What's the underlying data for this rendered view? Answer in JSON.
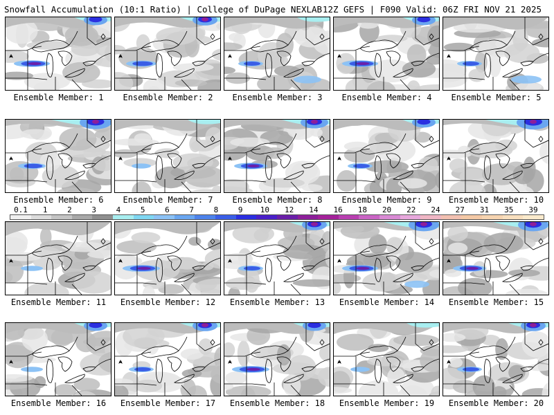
{
  "header": {
    "title_left": "Snowfall Accumulation (10:1 Ratio) | College of DuPage NEXLAB",
    "title_right": "12Z GEFS | F090 Valid: 06Z FRI NOV 21 2025"
  },
  "panels": [
    {
      "label": "Ensemble Member: 1",
      "north": 0.55,
      "lake_band": 0.9,
      "east": 0.2
    },
    {
      "label": "Ensemble Member: 2",
      "north": 0.6,
      "lake_band": 0.7,
      "east": 0.2
    },
    {
      "label": "Ensemble Member: 3",
      "north": 0.5,
      "lake_band": 0.5,
      "east": 0.5
    },
    {
      "label": "Ensemble Member: 4",
      "north": 0.55,
      "lake_band": 0.9,
      "east": 0.3
    },
    {
      "label": "Ensemble Member: 5",
      "north": 0.4,
      "lake_band": 0.5,
      "east": 0.6
    },
    {
      "label": "Ensemble Member: 6",
      "north": 0.85,
      "lake_band": 0.6,
      "east": 0.2
    },
    {
      "label": "Ensemble Member: 7",
      "north": 0.5,
      "lake_band": 0.3,
      "east": 0.2
    },
    {
      "label": "Ensemble Member: 8",
      "north": 0.7,
      "lake_band": 0.8,
      "east": 0.3
    },
    {
      "label": "Ensemble Member: 9",
      "north": 0.55,
      "lake_band": 0.5,
      "east": 0.2
    },
    {
      "label": "Ensemble Member: 10",
      "north": 0.9,
      "lake_band": 0.2,
      "east": 0.2
    },
    {
      "label": "Ensemble Member: 11",
      "north": 0.3,
      "lake_band": 0.4,
      "east": 0.2
    },
    {
      "label": "Ensemble Member: 12",
      "north": 0.4,
      "lake_band": 0.95,
      "east": 0.3
    },
    {
      "label": "Ensemble Member: 13",
      "north": 0.6,
      "lake_band": 0.5,
      "east": 0.3
    },
    {
      "label": "Ensemble Member: 14",
      "north": 0.8,
      "lake_band": 0.9,
      "east": 0.4
    },
    {
      "label": "Ensemble Member: 15",
      "north": 0.8,
      "lake_band": 0.8,
      "east": 0.3
    },
    {
      "label": "Ensemble Member: 16",
      "north": 0.55,
      "lake_band": 0.4,
      "east": 0.2
    },
    {
      "label": "Ensemble Member: 17",
      "north": 0.6,
      "lake_band": 0.5,
      "east": 0.2
    },
    {
      "label": "Ensemble Member: 18",
      "north": 0.55,
      "lake_band": 0.95,
      "east": 0.3
    },
    {
      "label": "Ensemble Member: 19",
      "north": 0.5,
      "lake_band": 0.3,
      "east": 0.2
    },
    {
      "label": "Ensemble Member: 20",
      "north": 0.6,
      "lake_band": 0.5,
      "east": 0.2
    }
  ],
  "colorbar": {
    "labels": [
      "0.1",
      "1",
      "2",
      "3",
      "4",
      "5",
      "6",
      "7",
      "8",
      "9",
      "10",
      "12",
      "14",
      "16",
      "18",
      "20",
      "22",
      "24",
      "27",
      "31",
      "35",
      "39"
    ],
    "colors": [
      "#f0f0f0",
      "#dcdcdc",
      "#c4c4c4",
      "#a8a8a8",
      "#8f8f8f",
      "#a8eef0",
      "#7fd7f2",
      "#8cc2f5",
      "#6aa6f0",
      "#4d82ea",
      "#3a5ee6",
      "#2b2fe0",
      "#4a20c8",
      "#6a1fa8",
      "#8d1f9a",
      "#a4229a",
      "#b83fb0",
      "#c964c4",
      "#d98ad4",
      "#e7a8dc",
      "#efb6c4",
      "#f2c0b0",
      "#f4c9a6",
      "#f6d4b0",
      "#f8dfbe",
      "#faeacc"
    ]
  }
}
